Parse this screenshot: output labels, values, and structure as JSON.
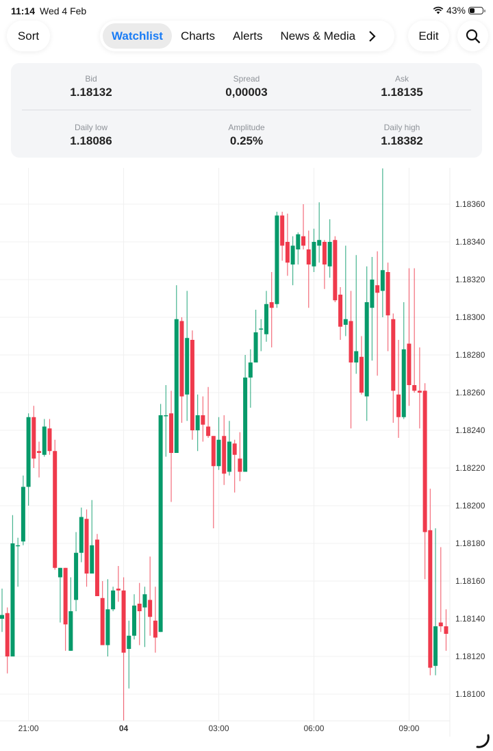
{
  "status_bar": {
    "time": "11:14",
    "date": "Wed 4 Feb",
    "battery": "43%",
    "battery_level": 0.43,
    "icons": [
      "wifi-icon",
      "battery-icon"
    ]
  },
  "toolbar": {
    "sort_label": "Sort",
    "tabs": [
      {
        "label": "Watchlist",
        "active": true
      },
      {
        "label": "Charts",
        "active": false
      },
      {
        "label": "Alerts",
        "active": false
      },
      {
        "label": "News & Media",
        "active": false
      }
    ],
    "more_icon": "chevron-right-icon",
    "edit_label": "Edit",
    "search_icon": "search-icon",
    "accent": "#1a7cf5"
  },
  "quote": {
    "bid": {
      "label": "Bid",
      "value": "1.18132"
    },
    "spread": {
      "label": "Spread",
      "value": "0,00003"
    },
    "ask": {
      "label": "Ask",
      "value": "1.18135"
    },
    "daily_low": {
      "label": "Daily low",
      "value": "1.18086"
    },
    "amplitude": {
      "label": "Amplitude",
      "value": "0.25%"
    },
    "daily_high": {
      "label": "Daily high",
      "value": "1.18382"
    }
  },
  "chart_data": {
    "type": "candlestick",
    "up_color": "#079a6a",
    "down_color": "#ef3a4c",
    "grid": true,
    "ylim": [
      1.18086,
      1.18379
    ],
    "y_ticks": [
      "1.18360",
      "1.18340",
      "1.18320",
      "1.18300",
      "1.18280",
      "1.18260",
      "1.18240",
      "1.18220",
      "1.18200",
      "1.18180",
      "1.18160",
      "1.18140",
      "1.18120",
      "1.18100"
    ],
    "x_ticks": [
      {
        "label": "21:00",
        "time": "21:00",
        "bold": false
      },
      {
        "label": "04",
        "time": "00:00",
        "bold": true
      },
      {
        "label": "03:00",
        "time": "03:00",
        "bold": false
      },
      {
        "label": "06:00",
        "time": "06:00",
        "bold": false
      },
      {
        "label": "09:00",
        "time": "09:00",
        "bold": false
      }
    ],
    "candle_fields": [
      "time",
      "open",
      "high",
      "low",
      "close"
    ],
    "candles": [
      [
        "20:10",
        1.1814,
        1.18156,
        1.18133,
        1.18142
      ],
      [
        "20:20",
        1.18143,
        1.18146,
        1.18111,
        1.1812
      ],
      [
        "20:30",
        1.1812,
        1.18195,
        1.1812,
        1.1818
      ],
      [
        "20:40",
        1.18179,
        1.18183,
        1.18157,
        1.18179
      ],
      [
        "20:50",
        1.18181,
        1.18216,
        1.18179,
        1.1821
      ],
      [
        "21:00",
        1.1821,
        1.18249,
        1.182,
        1.18247
      ],
      [
        "21:10",
        1.18247,
        1.18253,
        1.1822,
        1.18225
      ],
      [
        "21:20",
        1.18229,
        1.18234,
        1.18215,
        1.18228
      ],
      [
        "21:30",
        1.18227,
        1.18246,
        1.18226,
        1.18242
      ],
      [
        "21:40",
        1.18241,
        1.18246,
        1.18227,
        1.18229
      ],
      [
        "21:50",
        1.18229,
        1.18235,
        1.18166,
        1.18167
      ],
      [
        "22:00",
        1.18162,
        1.18167,
        1.18138,
        1.18167
      ],
      [
        "22:10",
        1.18167,
        1.18167,
        1.18123,
        1.18137
      ],
      [
        "22:20",
        1.18123,
        1.18162,
        1.18123,
        1.18144
      ],
      [
        "22:30",
        1.1815,
        1.18186,
        1.18144,
        1.18175
      ],
      [
        "22:40",
        1.18175,
        1.18199,
        1.1817,
        1.18194
      ],
      [
        "22:50",
        1.18193,
        1.18198,
        1.18157,
        1.18164
      ],
      [
        "23:00",
        1.18164,
        1.18203,
        1.18164,
        1.18179
      ],
      [
        "23:10",
        1.18182,
        1.18185,
        1.18152,
        1.18152
      ],
      [
        "23:20",
        1.18151,
        1.1816,
        1.18126,
        1.18126
      ],
      [
        "23:30",
        1.18126,
        1.18161,
        1.1812,
        1.18145
      ],
      [
        "23:40",
        1.18145,
        1.18157,
        1.18144,
        1.18155
      ],
      [
        "23:50",
        1.18156,
        1.18168,
        1.18149,
        1.18155
      ],
      [
        "00:00",
        1.18155,
        1.18162,
        1.18086,
        1.18122
      ],
      [
        "00:10",
        1.18124,
        1.18139,
        1.18103,
        1.18131
      ],
      [
        "00:20",
        1.18131,
        1.18153,
        1.18129,
        1.18147
      ],
      [
        "00:30",
        1.18148,
        1.18159,
        1.18126,
        1.18144
      ],
      [
        "00:40",
        1.18146,
        1.18157,
        1.18125,
        1.18153
      ],
      [
        "00:50",
        1.1815,
        1.18173,
        1.18131,
        1.18141
      ],
      [
        "01:00",
        1.18139,
        1.18157,
        1.18122,
        1.1813
      ],
      [
        "01:10",
        1.18133,
        1.18254,
        1.18133,
        1.18248
      ],
      [
        "01:20",
        1.18248,
        1.18264,
        1.18226,
        1.18248
      ],
      [
        "01:30",
        1.18249,
        1.18261,
        1.18202,
        1.18228
      ],
      [
        "01:40",
        1.18228,
        1.18317,
        1.18228,
        1.18299
      ],
      [
        "01:50",
        1.18298,
        1.183,
        1.18244,
        1.18258
      ],
      [
        "02:00",
        1.18259,
        1.18314,
        1.18245,
        1.18289
      ],
      [
        "02:10",
        1.18288,
        1.18293,
        1.18235,
        1.1824
      ],
      [
        "02:20",
        1.1824,
        1.18259,
        1.18229,
        1.18248
      ],
      [
        "02:30",
        1.18248,
        1.18258,
        1.18234,
        1.18243
      ],
      [
        "02:40",
        1.18242,
        1.18263,
        1.18236,
        1.18237
      ],
      [
        "02:50",
        1.18237,
        1.18237,
        1.18188,
        1.18221
      ],
      [
        "03:00",
        1.18221,
        1.18247,
        1.18219,
        1.18235
      ],
      [
        "03:10",
        1.18237,
        1.18248,
        1.18211,
        1.18217
      ],
      [
        "03:20",
        1.18218,
        1.18245,
        1.18216,
        1.18234
      ],
      [
        "03:30",
        1.18233,
        1.18235,
        1.18207,
        1.18227
      ],
      [
        "03:40",
        1.18225,
        1.18239,
        1.18213,
        1.18218
      ],
      [
        "03:50",
        1.18218,
        1.1828,
        1.18218,
        1.18268
      ],
      [
        "04:00",
        1.18268,
        1.18283,
        1.18252,
        1.18276
      ],
      [
        "04:10",
        1.18276,
        1.18304,
        1.18276,
        1.18292
      ],
      [
        "04:20",
        1.18294,
        1.18299,
        1.18282,
        1.18294
      ],
      [
        "04:30",
        1.18291,
        1.18314,
        1.18287,
        1.18307
      ],
      [
        "04:40",
        1.18308,
        1.18324,
        1.18284,
        1.18305
      ],
      [
        "04:50",
        1.18307,
        1.18356,
        1.18305,
        1.18354
      ],
      [
        "05:00",
        1.18354,
        1.18356,
        1.1833,
        1.18338
      ],
      [
        "05:10",
        1.1834,
        1.18355,
        1.18322,
        1.18329
      ],
      [
        "05:20",
        1.18328,
        1.18343,
        1.18317,
        1.18338
      ],
      [
        "05:30",
        1.18336,
        1.18345,
        1.18328,
        1.18344
      ],
      [
        "05:40",
        1.18343,
        1.1836,
        1.18336,
        1.18338
      ],
      [
        "05:50",
        1.18336,
        1.18346,
        1.18305,
        1.18328
      ],
      [
        "06:00",
        1.18327,
        1.18347,
        1.18324,
        1.1834
      ],
      [
        "06:10",
        1.18338,
        1.18361,
        1.18329,
        1.18341
      ],
      [
        "06:20",
        1.1834,
        1.18341,
        1.18315,
        1.18328
      ],
      [
        "06:30",
        1.18327,
        1.18352,
        1.18321,
        1.1834
      ],
      [
        "06:40",
        1.18341,
        1.18343,
        1.18308,
        1.18309
      ],
      [
        "06:50",
        1.18312,
        1.18316,
        1.18288,
        1.18295
      ],
      [
        "07:00",
        1.18296,
        1.18338,
        1.1829,
        1.18299
      ],
      [
        "07:10",
        1.18298,
        1.18314,
        1.18241,
        1.18276
      ],
      [
        "07:20",
        1.18276,
        1.18333,
        1.1827,
        1.18282
      ],
      [
        "07:30",
        1.18279,
        1.1829,
        1.18259,
        1.1826
      ],
      [
        "07:40",
        1.18258,
        1.18327,
        1.18245,
        1.18308
      ],
      [
        "07:50",
        1.18305,
        1.18332,
        1.18277,
        1.1832
      ],
      [
        "08:00",
        1.18317,
        1.18335,
        1.18269,
        1.18313
      ],
      [
        "08:10",
        1.18314,
        1.18379,
        1.183,
        1.18325
      ],
      [
        "08:20",
        1.18324,
        1.18329,
        1.18282,
        1.18301
      ],
      [
        "08:30",
        1.18299,
        1.18302,
        1.18244,
        1.18261
      ],
      [
        "08:40",
        1.18259,
        1.18288,
        1.18236,
        1.18247
      ],
      [
        "08:50",
        1.18247,
        1.18308,
        1.18246,
        1.18283
      ],
      [
        "09:00",
        1.18286,
        1.18326,
        1.18253,
        1.18264
      ],
      [
        "09:10",
        1.18264,
        1.18326,
        1.1826,
        1.18261
      ],
      [
        "09:20",
        1.18261,
        1.18284,
        1.18241,
        1.1826
      ],
      [
        "09:30",
        1.18261,
        1.18265,
        1.18161,
        1.18186
      ],
      [
        "09:40",
        1.18187,
        1.18209,
        1.1811,
        1.18114
      ],
      [
        "09:50",
        1.18115,
        1.18188,
        1.1811,
        1.18136
      ],
      [
        "10:00",
        1.18138,
        1.18178,
        1.18133,
        1.18136
      ],
      [
        "10:10",
        1.18136,
        1.18145,
        1.18123,
        1.18132
      ]
    ]
  },
  "loading_icon": "spinner-icon"
}
